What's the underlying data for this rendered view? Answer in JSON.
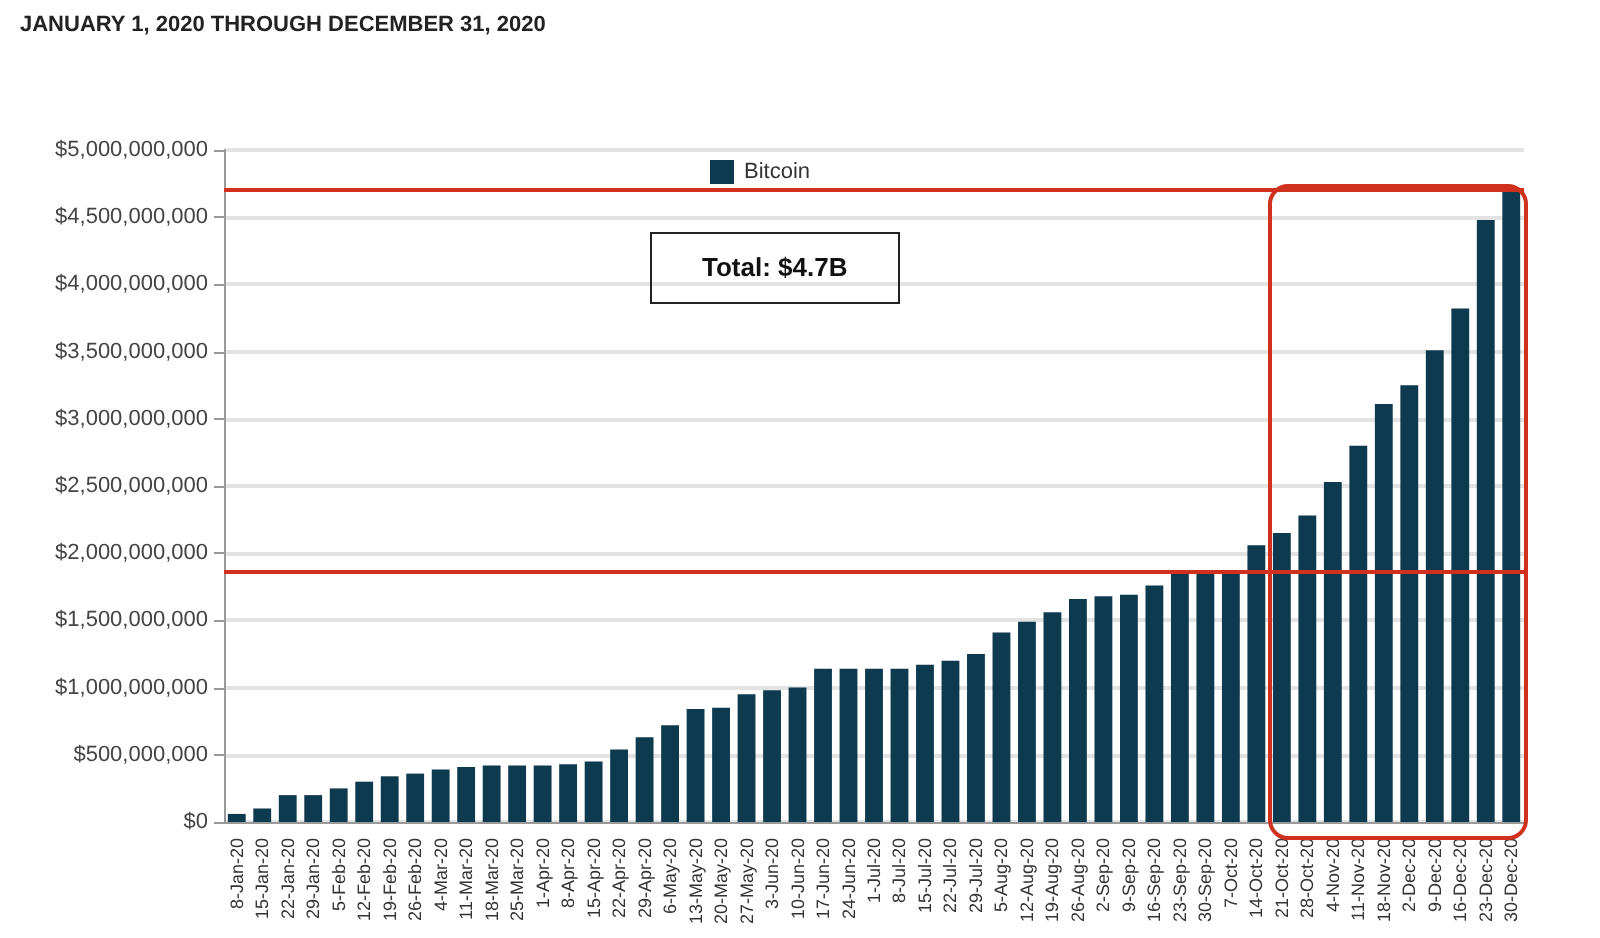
{
  "chart_data": {
    "type": "bar",
    "title": "JANUARY 1, 2020 THROUGH DECEMBER 31, 2020",
    "categories": [
      "8-Jan-20",
      "15-Jan-20",
      "22-Jan-20",
      "29-Jan-20",
      "5-Feb-20",
      "12-Feb-20",
      "19-Feb-20",
      "26-Feb-20",
      "4-Mar-20",
      "11-Mar-20",
      "18-Mar-20",
      "25-Mar-20",
      "1-Apr-20",
      "8-Apr-20",
      "15-Apr-20",
      "22-Apr-20",
      "29-Apr-20",
      "6-May-20",
      "13-May-20",
      "20-May-20",
      "27-May-20",
      "3-Jun-20",
      "10-Jun-20",
      "17-Jun-20",
      "24-Jun-20",
      "1-Jul-20",
      "8-Jul-20",
      "15-Jul-20",
      "22-Jul-20",
      "29-Jul-20",
      "5-Aug-20",
      "12-Aug-20",
      "19-Aug-20",
      "26-Aug-20",
      "2-Sep-20",
      "9-Sep-20",
      "16-Sep-20",
      "23-Sep-20",
      "30-Sep-20",
      "7-Oct-20",
      "14-Oct-20",
      "21-Oct-20",
      "28-Oct-20",
      "4-Nov-20",
      "11-Nov-20",
      "18-Nov-20",
      "2-Dec-20",
      "9-Dec-20",
      "16-Dec-20",
      "23-Dec-20",
      "30-Dec-20"
    ],
    "series": [
      {
        "name": "Bitcoin",
        "color": "#0d3a4f",
        "values": [
          60000000,
          100000000,
          200000000,
          200000000,
          250000000,
          300000000,
          340000000,
          360000000,
          390000000,
          410000000,
          420000000,
          420000000,
          420000000,
          430000000,
          450000000,
          540000000,
          630000000,
          720000000,
          840000000,
          850000000,
          950000000,
          980000000,
          1000000000,
          1140000000,
          1140000000,
          1140000000,
          1140000000,
          1170000000,
          1200000000,
          1250000000,
          1410000000,
          1490000000,
          1560000000,
          1660000000,
          1680000000,
          1690000000,
          1760000000,
          1860000000,
          1870000000,
          1870000000,
          2060000000,
          2150000000,
          2280000000,
          2530000000,
          2800000000,
          3110000000,
          3250000000,
          3510000000,
          3820000000,
          4480000000,
          4700000000
        ]
      }
    ],
    "ylim": [
      0,
      5000000000
    ],
    "yticks": [
      {
        "value": 0,
        "label": "$0"
      },
      {
        "value": 500000000,
        "label": "$500,000,000"
      },
      {
        "value": 1000000000,
        "label": "$1,000,000,000"
      },
      {
        "value": 1500000000,
        "label": "$1,500,000,000"
      },
      {
        "value": 2000000000,
        "label": "$2,000,000,000"
      },
      {
        "value": 2500000000,
        "label": "$2,500,000,000"
      },
      {
        "value": 3000000000,
        "label": "$3,000,000,000"
      },
      {
        "value": 3500000000,
        "label": "$3,500,000,000"
      },
      {
        "value": 4000000000,
        "label": "$4,000,000,000"
      },
      {
        "value": 4500000000,
        "label": "$4,500,000,000"
      },
      {
        "value": 5000000000,
        "label": "$5,000,000,000"
      }
    ],
    "grid": "y",
    "legend": "top",
    "annotations": [
      "Total: $4.7B"
    ],
    "ref_lines": [
      {
        "axis": "y",
        "value": 4700000000,
        "label": null,
        "color": "#d0311f"
      },
      {
        "axis": "y",
        "value": 1870000000,
        "label": null,
        "color": "#d0311f"
      }
    ]
  }
}
